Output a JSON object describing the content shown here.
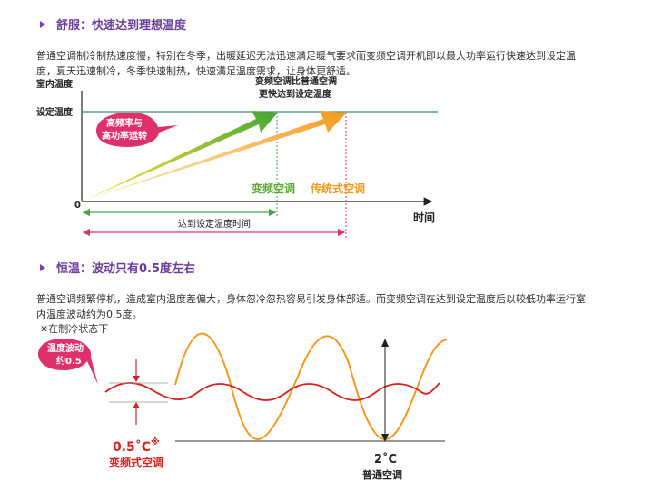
{
  "section1": {
    "title": "舒服：快速达到理想温度",
    "paragraph_l1": "普通空调制冷制热速度慢，特别在冬季，出暖延迟无法迅速满足暖气要求而变频空调开机即以最大功率运行快速达到设定温",
    "paragraph_l2": "度，夏天迅速制冷，冬季快速制热，快速满足温度需求，让身体更舒适。",
    "chart": {
      "y_axis_label": "室内温度",
      "setpoint_label": "设定温度",
      "origin_label": "0",
      "x_axis_label": "时间",
      "callout_l1": "高频率与",
      "callout_l2": "高功率运转",
      "top_note_l1": "变频空调比普通空调",
      "top_note_l2": "更快达到设定温度",
      "inverter_label": "变频空调",
      "traditional_label": "传统式空调",
      "duration_label": "达到设定温度时间"
    }
  },
  "section2": {
    "title": "恒温：波动只有0.5度左右",
    "paragraph_l1": "普通空调频繁停机，造成室内温度差偏大，身体忽冷忽热容易引发身体部适。而变频空调在达到设定温度后以较低功率运行室",
    "paragraph_l2": "内温度波动约为0.5度。",
    "note": "※在制冷状态下",
    "chart": {
      "callout_l1": "温度波动",
      "callout_l2": "约0.5",
      "small_value": "0.5˚C",
      "small_star": "※",
      "inverter_label": "变频式空调",
      "big_value": "2˚C",
      "normal_label": "普通空调"
    }
  },
  "colors": {
    "title_purple": "#6a3d9a",
    "inverter_green": "#5aa832",
    "traditional_orange": "#f39a1e",
    "pink": "#e0306a",
    "red": "#d8201f"
  }
}
